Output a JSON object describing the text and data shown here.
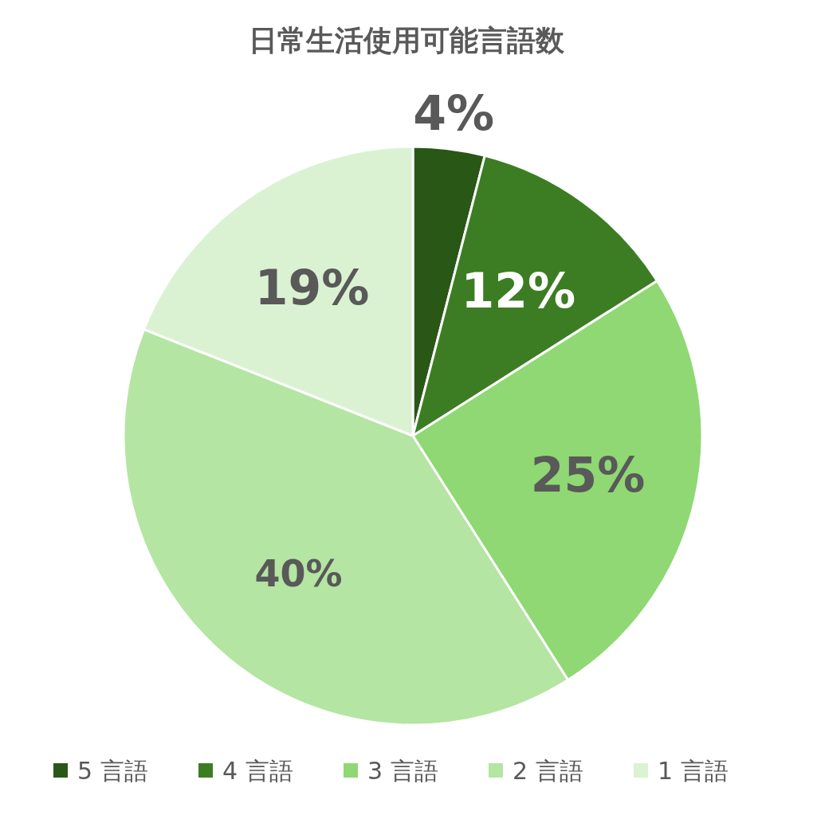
{
  "chart_data": {
    "type": "pie",
    "title": "日常生活使用可能言語数",
    "categories": [
      "5 言語",
      "4 言語",
      "3 言語",
      "2 言語",
      "1 言語"
    ],
    "values": [
      4,
      12,
      25,
      40,
      19
    ],
    "colors": [
      "#295716",
      "#3c7d23",
      "#8fd873",
      "#b4e5a2",
      "#daf2d2"
    ],
    "value_labels": [
      "4%",
      "12%",
      "25%",
      "40%",
      "19%"
    ],
    "legend": "bottom"
  }
}
